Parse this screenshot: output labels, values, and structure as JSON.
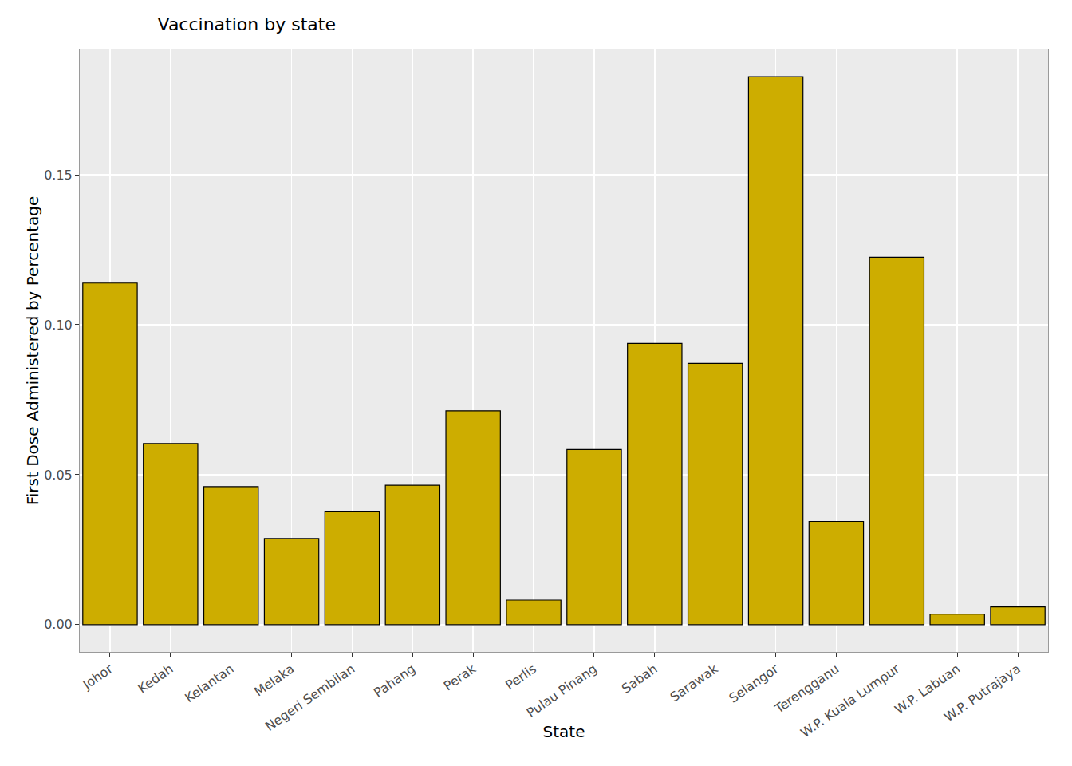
{
  "chart_data": {
    "type": "bar",
    "title": "Vaccination by state",
    "x_label": "State",
    "y_label": "First Dose Administered by Percentage",
    "categories": [
      "Johor",
      "Kedah",
      "Kelantan",
      "Melaka",
      "Negeri Sembilan",
      "Pahang",
      "Perak",
      "Perlis",
      "Pulau Pinang",
      "Sabah",
      "Sarawak",
      "Selangor",
      "Terengganu",
      "W.P. Kuala Lumpur",
      "W.P. Labuan",
      "W.P. Putrajaya"
    ],
    "values": [
      0.1139,
      0.0604,
      0.046,
      0.0287,
      0.0376,
      0.0465,
      0.0713,
      0.0082,
      0.0584,
      0.0938,
      0.0871,
      0.1827,
      0.0344,
      0.1225,
      0.0035,
      0.0059
    ],
    "color": "#CDAD00",
    "ylim": [
      -0.0091,
      0.1918
    ],
    "yticks": [
      {
        "value": 0,
        "label": "0.00"
      },
      {
        "value": 0.05,
        "label": "0.05"
      },
      {
        "value": 0.1,
        "label": "0.10"
      },
      {
        "value": 0.15,
        "label": "0.15"
      }
    ],
    "grid": true
  }
}
